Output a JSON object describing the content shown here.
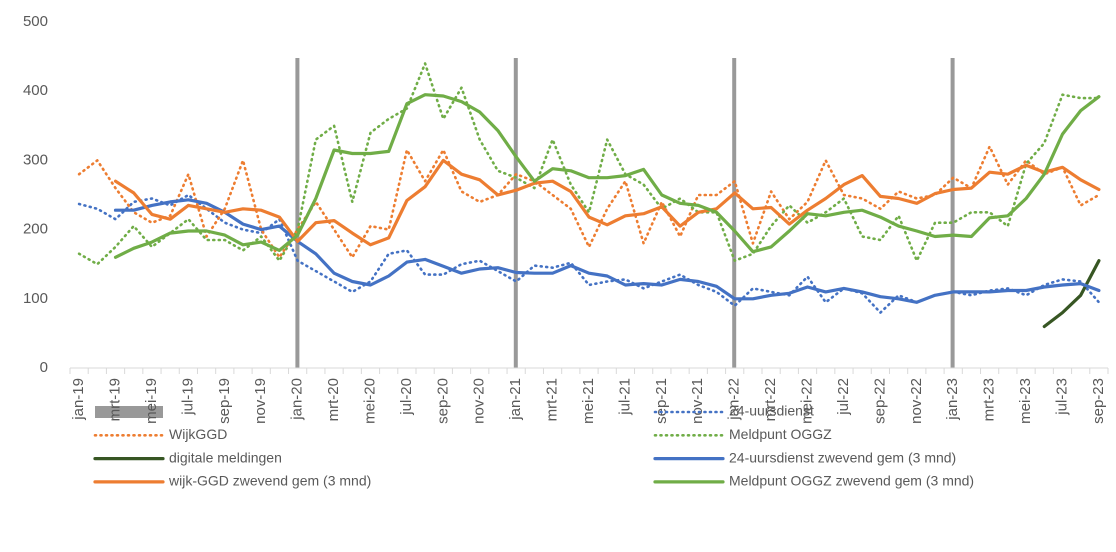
{
  "chart_data": {
    "type": "line",
    "categories": [
      "jan-19",
      null,
      "mrt-19",
      null,
      "mei-19",
      null,
      "jul-19",
      null,
      "sep-19",
      null,
      "nov-19",
      null,
      "jan-20",
      null,
      "mrt-20",
      null,
      "mei-20",
      null,
      "jul-20",
      null,
      "sep-20",
      null,
      "nov-20",
      null,
      "jan-21",
      null,
      "mrt-21",
      null,
      "mei-21",
      null,
      "jul-21",
      null,
      "sep-21",
      null,
      "nov-21",
      null,
      "jan-22",
      null,
      "mrt-22",
      null,
      "mei-22",
      null,
      "jul-22",
      null,
      "sep-22",
      null,
      "nov-22",
      null,
      "jan-23",
      null,
      "mrt-23",
      null,
      "mei-23",
      null,
      "jul-23",
      null,
      "sep-23"
    ],
    "ylim": [
      0,
      500
    ],
    "yticks": [
      0,
      100,
      200,
      300,
      400,
      500
    ],
    "grid": false,
    "series": [
      {
        "name": "24-uursdienst",
        "color": "#4472c4",
        "dash": "dotted",
        "values": [
          237,
          230,
          215,
          240,
          245,
          235,
          250,
          230,
          210,
          200,
          195,
          215,
          155,
          140,
          125,
          110,
          125,
          165,
          170,
          135,
          135,
          150,
          155,
          140,
          125,
          148,
          145,
          152,
          120,
          125,
          128,
          115,
          125,
          135,
          120,
          110,
          90,
          115,
          110,
          105,
          132,
          95,
          115,
          108,
          80,
          105,
          95,
          105,
          110,
          105,
          112,
          115,
          105,
          120,
          128,
          125,
          95
        ]
      },
      {
        "name": "WijkGGD",
        "color": "#ed7d31",
        "dash": "dotted",
        "values": [
          280,
          300,
          260,
          225,
          210,
          220,
          280,
          190,
          230,
          300,
          200,
          160,
          200,
          240,
          200,
          160,
          205,
          200,
          315,
          270,
          315,
          255,
          240,
          250,
          280,
          270,
          250,
          230,
          175,
          230,
          270,
          180,
          240,
          190,
          250,
          250,
          270,
          180,
          255,
          215,
          240,
          300,
          250,
          245,
          230,
          255,
          245,
          250,
          275,
          260,
          320,
          265,
          300,
          280,
          290,
          235,
          250
        ]
      },
      {
        "name": "Meldpunt OGGZ",
        "color": "#70ad47",
        "dash": "dotted",
        "values": [
          165,
          150,
          175,
          205,
          175,
          195,
          215,
          185,
          185,
          170,
          190,
          155,
          200,
          330,
          350,
          240,
          340,
          360,
          375,
          440,
          360,
          405,
          330,
          285,
          275,
          260,
          330,
          265,
          225,
          330,
          280,
          265,
          230,
          245,
          225,
          225,
          155,
          165,
          205,
          235,
          210,
          225,
          245,
          190,
          185,
          220,
          155,
          210,
          210,
          225,
          225,
          205,
          295,
          325,
          395,
          390,
          390
        ]
      },
      {
        "name": "digitale meldingen",
        "color": "#375623",
        "dash": "solid",
        "values": [
          null,
          null,
          null,
          null,
          null,
          null,
          null,
          null,
          null,
          null,
          null,
          null,
          null,
          null,
          null,
          null,
          null,
          null,
          null,
          null,
          null,
          null,
          null,
          null,
          null,
          null,
          null,
          null,
          null,
          null,
          null,
          null,
          null,
          null,
          null,
          null,
          null,
          null,
          null,
          null,
          null,
          null,
          null,
          null,
          null,
          null,
          null,
          null,
          null,
          null,
          null,
          null,
          null,
          60,
          80,
          105,
          155
        ]
      },
      {
        "name": "24-uursdienst zwevend gem (3 mnd)",
        "color": "#4472c4",
        "dash": "solid",
        "values": [
          null,
          null,
          228,
          228,
          235,
          240,
          243,
          238,
          225,
          208,
          200,
          205,
          183,
          165,
          137,
          125,
          120,
          133,
          153,
          157,
          147,
          137,
          143,
          145,
          138,
          137,
          137,
          148,
          137,
          133,
          120,
          122,
          120,
          128,
          125,
          118,
          100,
          100,
          105,
          108,
          117,
          110,
          115,
          110,
          103,
          100,
          95,
          105,
          110,
          110,
          110,
          112,
          112,
          117,
          120,
          122,
          112
        ]
      },
      {
        "name": "wijk-GGD zwevend gem (3 mnd)",
        "color": "#ed7d31",
        "dash": "solid",
        "values": [
          null,
          null,
          270,
          253,
          222,
          215,
          235,
          230,
          225,
          230,
          228,
          218,
          183,
          210,
          213,
          195,
          178,
          188,
          242,
          262,
          300,
          280,
          272,
          250,
          257,
          267,
          270,
          255,
          218,
          207,
          220,
          223,
          233,
          205,
          225,
          230,
          253,
          230,
          232,
          208,
          228,
          245,
          265,
          278,
          248,
          245,
          238,
          252,
          258,
          260,
          283,
          280,
          293,
          283,
          290,
          272,
          258
        ]
      },
      {
        "name": "Meldpunt OGGZ zwevend gem (3 mnd)",
        "color": "#70ad47",
        "dash": "solid",
        "values": [
          null,
          null,
          160,
          173,
          182,
          195,
          198,
          198,
          192,
          178,
          182,
          170,
          192,
          245,
          315,
          310,
          310,
          313,
          382,
          395,
          393,
          385,
          370,
          343,
          305,
          270,
          288,
          285,
          275,
          275,
          278,
          287,
          250,
          238,
          235,
          225,
          198,
          168,
          175,
          198,
          223,
          220,
          225,
          228,
          218,
          205,
          198,
          190,
          192,
          190,
          217,
          220,
          245,
          280,
          338,
          372,
          392
        ]
      }
    ]
  }
}
